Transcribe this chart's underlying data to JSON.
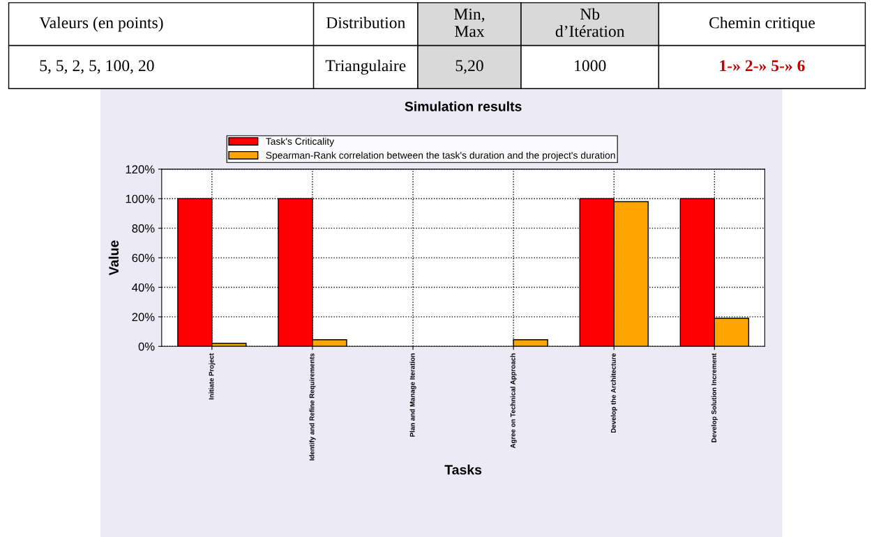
{
  "chart_data": {
    "type": "bar",
    "title": "Simulation results",
    "xlabel": "Tasks",
    "ylabel": "Value",
    "categories": [
      "Initiate Project",
      "Identify and Refine Requirements",
      "Plan and Manage Iteration",
      "Agree on Technical Approach",
      "Develop the Architecture",
      "Develop Solution Increment"
    ],
    "series": [
      {
        "name": "Task's Criticality",
        "color": "#ff0000",
        "values": [
          100,
          100,
          0,
          0,
          100,
          100
        ]
      },
      {
        "name": "Spearman-Rank correlation between the task's duration and the project's duration",
        "color": "#ffa500",
        "values": [
          2,
          4.5,
          0,
          4.5,
          98,
          19
        ]
      }
    ],
    "ylim": [
      0,
      120
    ],
    "yticks": [
      {
        "value": 0,
        "label": "0%"
      },
      {
        "value": 20,
        "label": "20%"
      },
      {
        "value": 40,
        "label": "40%"
      },
      {
        "value": 60,
        "label": "60%"
      },
      {
        "value": 80,
        "label": "80%"
      },
      {
        "value": 100,
        "label": "100%"
      },
      {
        "value": 120,
        "label": "120%"
      }
    ],
    "grid": true,
    "legend": "top",
    "annotations": [
      "Valeurs (en points)",
      "Distribution",
      "Min, Max",
      "Nb d’Itération",
      "Chemin critique",
      "5, 5, 2, 5, 100, 20",
      "Triangulaire",
      "5,20",
      "1000",
      "1-» 2-» 5-» 6"
    ]
  }
}
